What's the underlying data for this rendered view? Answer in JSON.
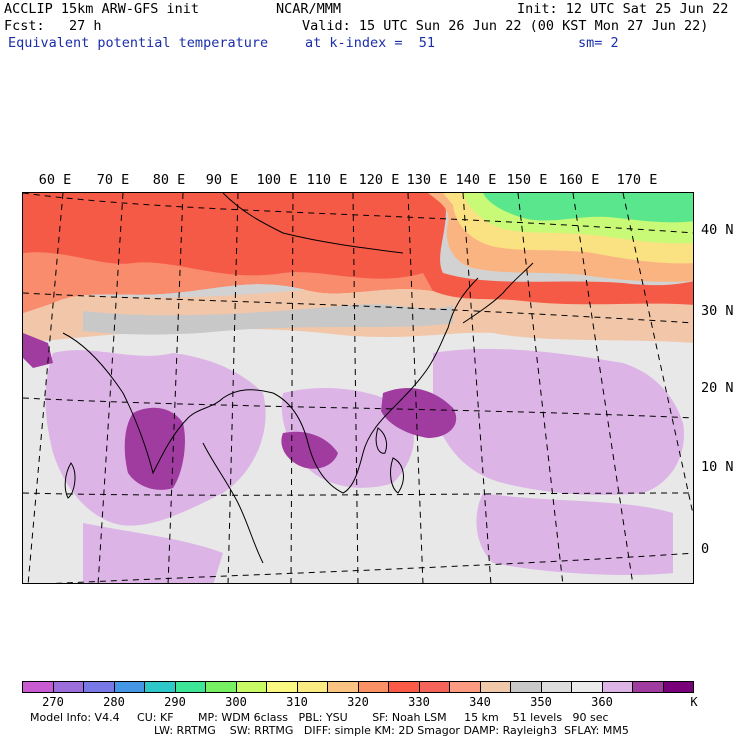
{
  "header": {
    "model": "ACCLIP 15km ARW-GFS init",
    "center": "NCAR/MMM",
    "init": "Init: 12 UTC Sat 25 Jun 22",
    "fcst": "Fcst:   27 h",
    "valid": "Valid: 15 UTC Sun 26 Jun 22 (00 KST Mon 27 Jun 22)",
    "field": "Equivalent potential temperature",
    "level": "at k-index =  51",
    "smooth": "sm= 2"
  },
  "map": {
    "lon_labels": [
      "60 E",
      "70 E",
      "80 E",
      "90 E",
      "100 E",
      "110 E",
      "120 E",
      "130 E",
      "140 E",
      "150 E",
      "160 E",
      "170 E"
    ],
    "lat_labels": [
      "40 N",
      "30 N",
      "20 N",
      "10 N",
      "0"
    ]
  },
  "colorbar": {
    "colors": [
      "#c85ad2",
      "#9b6edc",
      "#7878e6",
      "#4696e6",
      "#2fc8c8",
      "#3ce696",
      "#78f064",
      "#c8fa64",
      "#fafa82",
      "#faeb82",
      "#fac382",
      "#fa9164",
      "#fa5a46",
      "#f5645a",
      "#fa9b82",
      "#f0c8aa",
      "#c8c8c8",
      "#dcdcdc",
      "#ebebeb",
      "#dcb4e6",
      "#a03ca0",
      "#780078"
    ],
    "ticks": [
      "270",
      "280",
      "290",
      "300",
      "310",
      "320",
      "330",
      "340",
      "350",
      "360"
    ],
    "unit": "K"
  },
  "model_info": {
    "line1": "Model Info: V4.4     CU: KF       MP: WDM 6class   PBL: YSU       SF: Noah LSM     15 km    51 levels   90 sec",
    "line2": "LW: RRTMG    SW: RRTMG   DIFF: simple KM: 2D Smagor DAMP: Rayleigh3  SFLAY: MM5"
  }
}
